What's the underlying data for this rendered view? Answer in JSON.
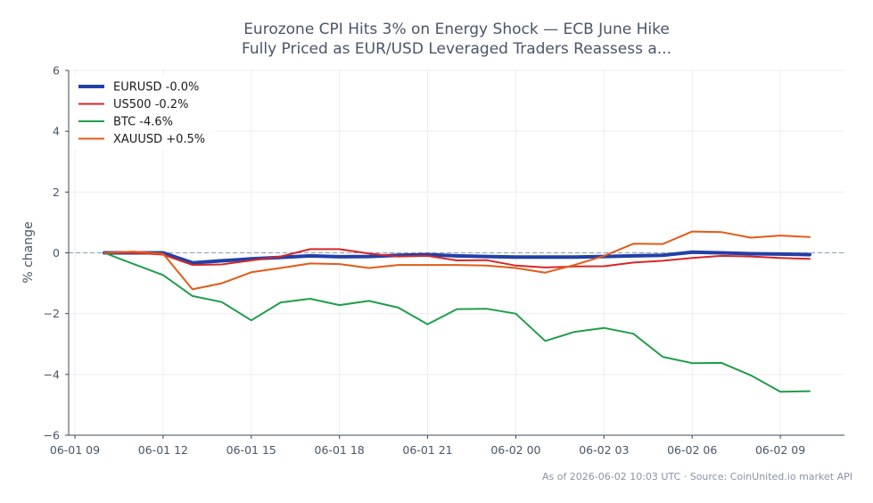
{
  "chart_data": {
    "type": "line",
    "title_lines": [
      "Eurozone CPI Hits 3% on Energy Shock — ECB June Hike",
      "Fully Priced as EUR/USD Leveraged Traders Reassess a..."
    ],
    "xlabel": "",
    "ylabel": "% change",
    "ylim": [
      -6,
      6
    ],
    "y_ticks": [
      -6,
      -4,
      -2,
      0,
      2,
      4,
      6
    ],
    "y_tick_labels": [
      "−6",
      "−4",
      "−2",
      "0",
      "2",
      "4",
      "6"
    ],
    "x_range": [
      "2026-06-01 09:00",
      "2026-06-02 11:00"
    ],
    "x_ticks": [
      "2026-06-01 09:00",
      "2026-06-01 12:00",
      "2026-06-01 15:00",
      "2026-06-01 18:00",
      "2026-06-01 21:00",
      "2026-06-02 00:00",
      "2026-06-02 03:00",
      "2026-06-02 06:00",
      "2026-06-02 09:00"
    ],
    "x_tick_labels": [
      "06-01 09",
      "06-01 12",
      "06-01 15",
      "06-01 18",
      "06-01 21",
      "06-02 00",
      "06-02 03",
      "06-02 06",
      "06-02 09"
    ],
    "x": [
      "2026-06-01 10:00",
      "2026-06-01 11:00",
      "2026-06-01 12:00",
      "2026-06-01 13:00",
      "2026-06-01 14:00",
      "2026-06-01 15:00",
      "2026-06-01 16:00",
      "2026-06-01 17:00",
      "2026-06-01 18:00",
      "2026-06-01 19:00",
      "2026-06-01 20:00",
      "2026-06-01 21:00",
      "2026-06-01 22:00",
      "2026-06-01 23:00",
      "2026-06-02 00:00",
      "2026-06-02 01:00",
      "2026-06-02 02:00",
      "2026-06-02 03:00",
      "2026-06-02 04:00",
      "2026-06-02 05:00",
      "2026-06-02 06:00",
      "2026-06-02 07:00",
      "2026-06-02 08:00",
      "2026-06-02 09:00",
      "2026-06-02 10:00"
    ],
    "reference_line": 0,
    "grid": true,
    "legend_position": "top-left",
    "series": [
      {
        "name": "EURUSD -0.0%",
        "color": "#2340a8",
        "width": 4,
        "values": [
          0.0,
          0.0,
          0.0,
          -0.33,
          -0.26,
          -0.2,
          -0.15,
          -0.1,
          -0.13,
          -0.12,
          -0.08,
          -0.06,
          -0.1,
          -0.12,
          -0.14,
          -0.14,
          -0.14,
          -0.12,
          -0.1,
          -0.08,
          0.02,
          0.0,
          -0.03,
          -0.04,
          -0.06
        ]
      },
      {
        "name": "US500 -0.2%",
        "color": "#d62728",
        "width": 2,
        "values": [
          0.0,
          0.0,
          -0.06,
          -0.4,
          -0.38,
          -0.25,
          -0.12,
          0.12,
          0.12,
          -0.02,
          -0.12,
          -0.1,
          -0.25,
          -0.24,
          -0.42,
          -0.48,
          -0.45,
          -0.44,
          -0.32,
          -0.26,
          -0.17,
          -0.1,
          -0.12,
          -0.17,
          -0.2
        ]
      },
      {
        "name": "BTC -4.6%",
        "color": "#1f9e4a",
        "width": 2,
        "values": [
          0.0,
          -0.37,
          -0.73,
          -1.42,
          -1.62,
          -2.22,
          -1.63,
          -1.51,
          -1.72,
          -1.58,
          -1.8,
          -2.35,
          -1.85,
          -1.84,
          -2.0,
          -2.9,
          -2.6,
          -2.47,
          -2.66,
          -3.42,
          -3.63,
          -3.62,
          -4.03,
          -4.57,
          -4.55
        ]
      },
      {
        "name": "XAUUSD +0.5%",
        "color": "#e25b17",
        "width": 2,
        "values": [
          0.0,
          0.04,
          -0.03,
          -1.2,
          -1.0,
          -0.64,
          -0.5,
          -0.35,
          -0.37,
          -0.5,
          -0.4,
          -0.4,
          -0.4,
          -0.42,
          -0.5,
          -0.65,
          -0.4,
          -0.1,
          0.3,
          0.29,
          0.7,
          0.68,
          0.5,
          0.57,
          0.52
        ]
      }
    ],
    "footer": "As of 2026-06-02 10:03 UTC · Source: CoinUnited.io market API"
  }
}
